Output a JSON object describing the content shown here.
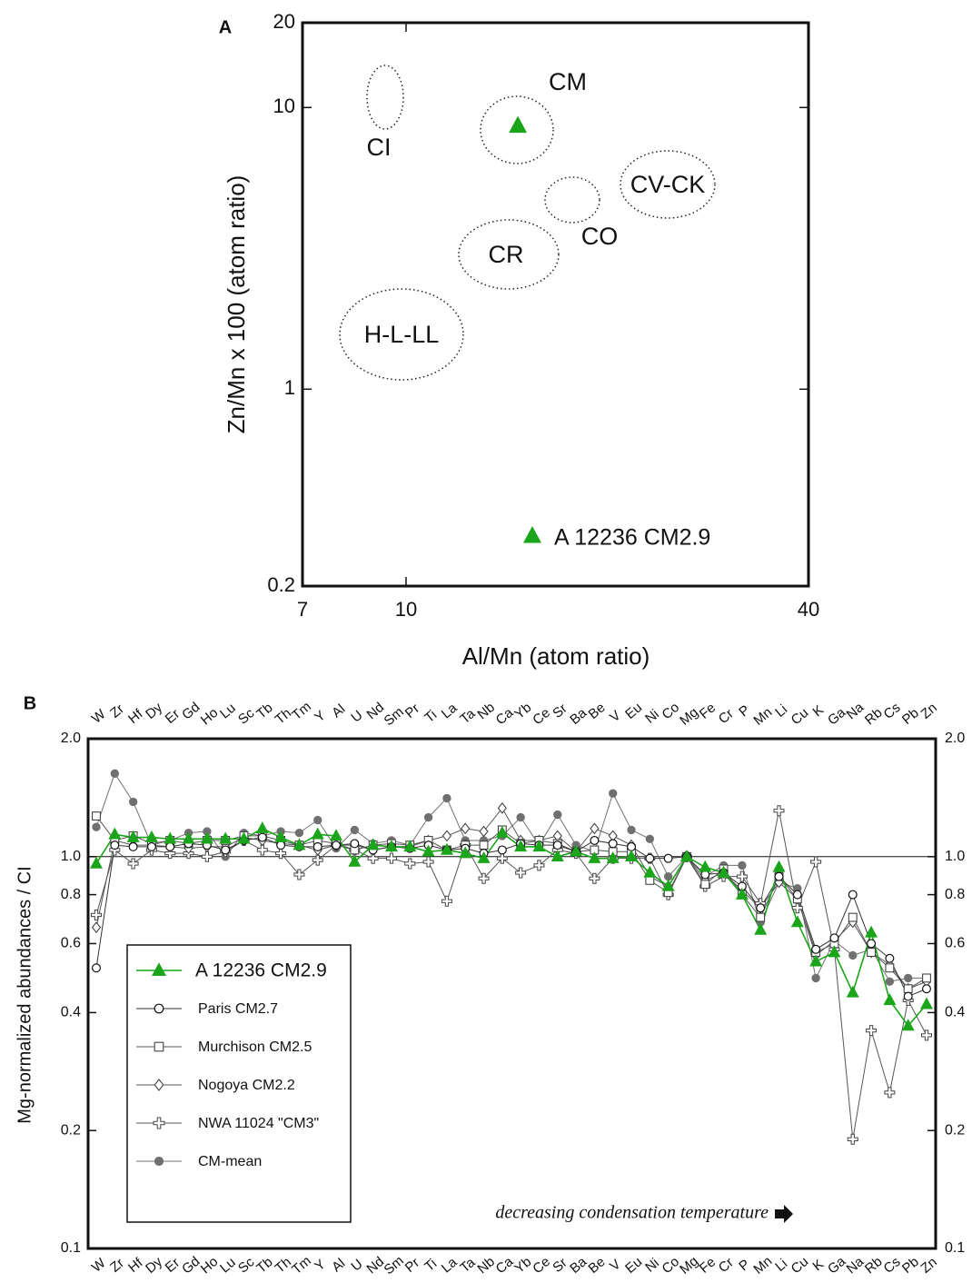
{
  "chart_data": [
    {
      "type": "scatter",
      "panel_label": "A",
      "xlabel": "Al/Mn (atom ratio)",
      "ylabel": "Zn/Mn x 100 (atom ratio)",
      "xscale": "log",
      "yscale": "log",
      "xlim": [
        7,
        40
      ],
      "ylim": [
        0.2,
        20
      ],
      "xticks": [
        7,
        10,
        40
      ],
      "yticks": [
        0.2,
        1,
        10,
        20
      ],
      "series": [
        {
          "name": "A 12236 CM2.9",
          "color": "#1aa51a",
          "marker": "triangle",
          "x": [
            14.7
          ],
          "y": [
            8.6
          ]
        }
      ],
      "regions": [
        {
          "label": "CI"
        },
        {
          "label": "CM"
        },
        {
          "label": "CO"
        },
        {
          "label": "CV-CK"
        },
        {
          "label": "CR"
        },
        {
          "label": "H-L-LL"
        }
      ]
    },
    {
      "type": "line",
      "panel_label": "B",
      "ylabel": "Mg-normalized abundances / CI",
      "annotation": "decreasing condensation temperature",
      "yscale": "log",
      "ylim": [
        0.1,
        2
      ],
      "yticks": [
        0.1,
        0.2,
        0.4,
        0.6,
        0.8,
        {
          "value": 1,
          "label": "1.0"
        },
        {
          "value": 2,
          "label": "2.0"
        }
      ],
      "y2lim": [
        0.1,
        2
      ],
      "y2ticks": [
        0.1,
        0.2,
        0.4,
        0.6,
        0.8,
        {
          "value": 1,
          "label": "1.0"
        },
        {
          "value": 2,
          "label": "2.0"
        }
      ],
      "hline": 1,
      "categories": [
        "W",
        "Zr",
        "Hf",
        "Dy",
        "Er",
        "Gd",
        "Ho",
        "Lu",
        "Sc",
        "Tb",
        "Th",
        "Tm",
        "Y",
        "Al",
        "U",
        "Nd",
        "Sm",
        "Pr",
        "Ti",
        "La",
        "Ta",
        "Nb",
        "Ca",
        "Yb",
        "Ce",
        "Sr",
        "Ba",
        "Be",
        "V",
        "Eu",
        "Ni",
        "Co",
        "Mg",
        "Fe",
        "Cr",
        "P",
        "Mn",
        "Li",
        "Cu",
        "K",
        "Ga",
        "Na",
        "Rb",
        "Cs",
        "Pb",
        "Zn"
      ],
      "series": [
        {
          "name": "A 12236 CM2.9",
          "color": "#1aa51a",
          "marker": "triangle",
          "values": [
            0.96,
            1.14,
            1.12,
            1.12,
            1.11,
            1.11,
            1.11,
            1.11,
            1.11,
            1.18,
            1.12,
            1.07,
            1.14,
            1.13,
            0.97,
            1.07,
            1.06,
            1.06,
            1.03,
            1.04,
            1.02,
            0.99,
            1.15,
            1.06,
            1.06,
            1.0,
            1.03,
            0.99,
            0.99,
            1.0,
            0.91,
            0.84,
            1.0,
            0.94,
            0.91,
            0.8,
            0.65,
            0.94,
            0.68,
            0.54,
            0.57,
            0.45,
            0.64,
            0.43,
            0.37,
            0.42
          ]
        },
        {
          "name": "Paris CM2.7",
          "color": "#333333",
          "marker": "circle-open",
          "values": [
            0.52,
            1.07,
            1.06,
            1.06,
            1.06,
            1.08,
            1.07,
            1.04,
            1.1,
            1.12,
            1.07,
            1.06,
            1.06,
            1.07,
            1.08,
            1.04,
            1.06,
            1.05,
            1.07,
            1.04,
            1.05,
            1.02,
            1.04,
            1.08,
            1.07,
            1.07,
            1.03,
            1.1,
            1.08,
            1.06,
            0.99,
            0.99,
            1.0,
            0.9,
            0.91,
            0.84,
            0.74,
            0.89,
            0.8,
            0.58,
            0.62,
            0.8,
            0.6,
            0.55,
            0.44,
            0.46
          ]
        },
        {
          "name": "Murchison CM2.5",
          "color": "#555555",
          "marker": "square-open",
          "values": [
            1.27,
            1.1,
            1.13,
            1.08,
            1.1,
            1.08,
            1.1,
            1.1,
            1.13,
            1.13,
            1.1,
            1.07,
            1.1,
            1.08,
            1.04,
            1.07,
            1.08,
            1.07,
            1.1,
            1.04,
            1.07,
            1.07,
            1.17,
            1.08,
            1.1,
            1.08,
            1.03,
            1.04,
            1.03,
            1.03,
            0.87,
            0.81,
            1.0,
            0.85,
            0.93,
            0.8,
            0.7,
            0.89,
            0.78,
            0.57,
            0.6,
            0.7,
            0.57,
            0.52,
            0.46,
            0.49
          ]
        },
        {
          "name": "Nogoya CM2.2",
          "color": "#555555",
          "marker": "diamond-open",
          "values": [
            0.66,
            1.1,
            1.07,
            1.07,
            1.06,
            1.05,
            1.06,
            1.06,
            1.12,
            1.1,
            1.08,
            1.07,
            1.04,
            1.07,
            1.07,
            1.04,
            1.06,
            1.06,
            1.1,
            1.13,
            1.18,
            1.16,
            1.33,
            1.1,
            1.1,
            1.13,
            1.03,
            1.18,
            1.13,
            1.07,
            0.89,
            0.84,
            1.0,
            0.87,
            0.91,
            0.82,
            0.74,
            0.86,
            0.78,
            0.56,
            0.61,
            0.68,
            0.57,
            0.53,
            0.46,
            0.48
          ]
        },
        {
          "name": "NWA 11024 \"CM3\"",
          "color": "#555555",
          "marker": "cross-open",
          "values": [
            0.71,
            1.04,
            0.96,
            1.04,
            1.02,
            1.02,
            1.0,
            1.03,
            1.1,
            1.04,
            1.02,
            0.9,
            0.98,
            1.07,
            1.04,
            0.99,
            0.99,
            0.96,
            0.97,
            0.77,
            1.07,
            0.88,
            0.99,
            0.91,
            0.95,
            1.04,
            1.02,
            0.88,
            0.99,
            0.99,
            0.99,
            0.8,
            1.0,
            0.84,
            0.89,
            0.89,
            0.76,
            1.31,
            0.74,
            0.97,
            0.58,
            0.19,
            0.36,
            0.25,
            0.43,
            0.35
          ]
        },
        {
          "name": "CM-mean",
          "color": "#707070",
          "marker": "circle-filled",
          "values": [
            1.19,
            1.63,
            1.38,
            1.07,
            1.1,
            1.15,
            1.16,
            1.0,
            1.15,
            1.13,
            1.16,
            1.15,
            1.24,
            1.05,
            1.17,
            1.08,
            1.1,
            1.07,
            1.26,
            1.41,
            1.1,
            1.1,
            1.13,
            1.26,
            1.07,
            1.28,
            1.07,
            1.03,
            1.45,
            1.17,
            1.11,
            0.89,
            1.0,
            0.89,
            0.95,
            0.95,
            0.68,
            0.86,
            0.83,
            0.49,
            0.61,
            0.56,
            0.58,
            0.48,
            0.49,
            0.49
          ]
        }
      ]
    }
  ]
}
